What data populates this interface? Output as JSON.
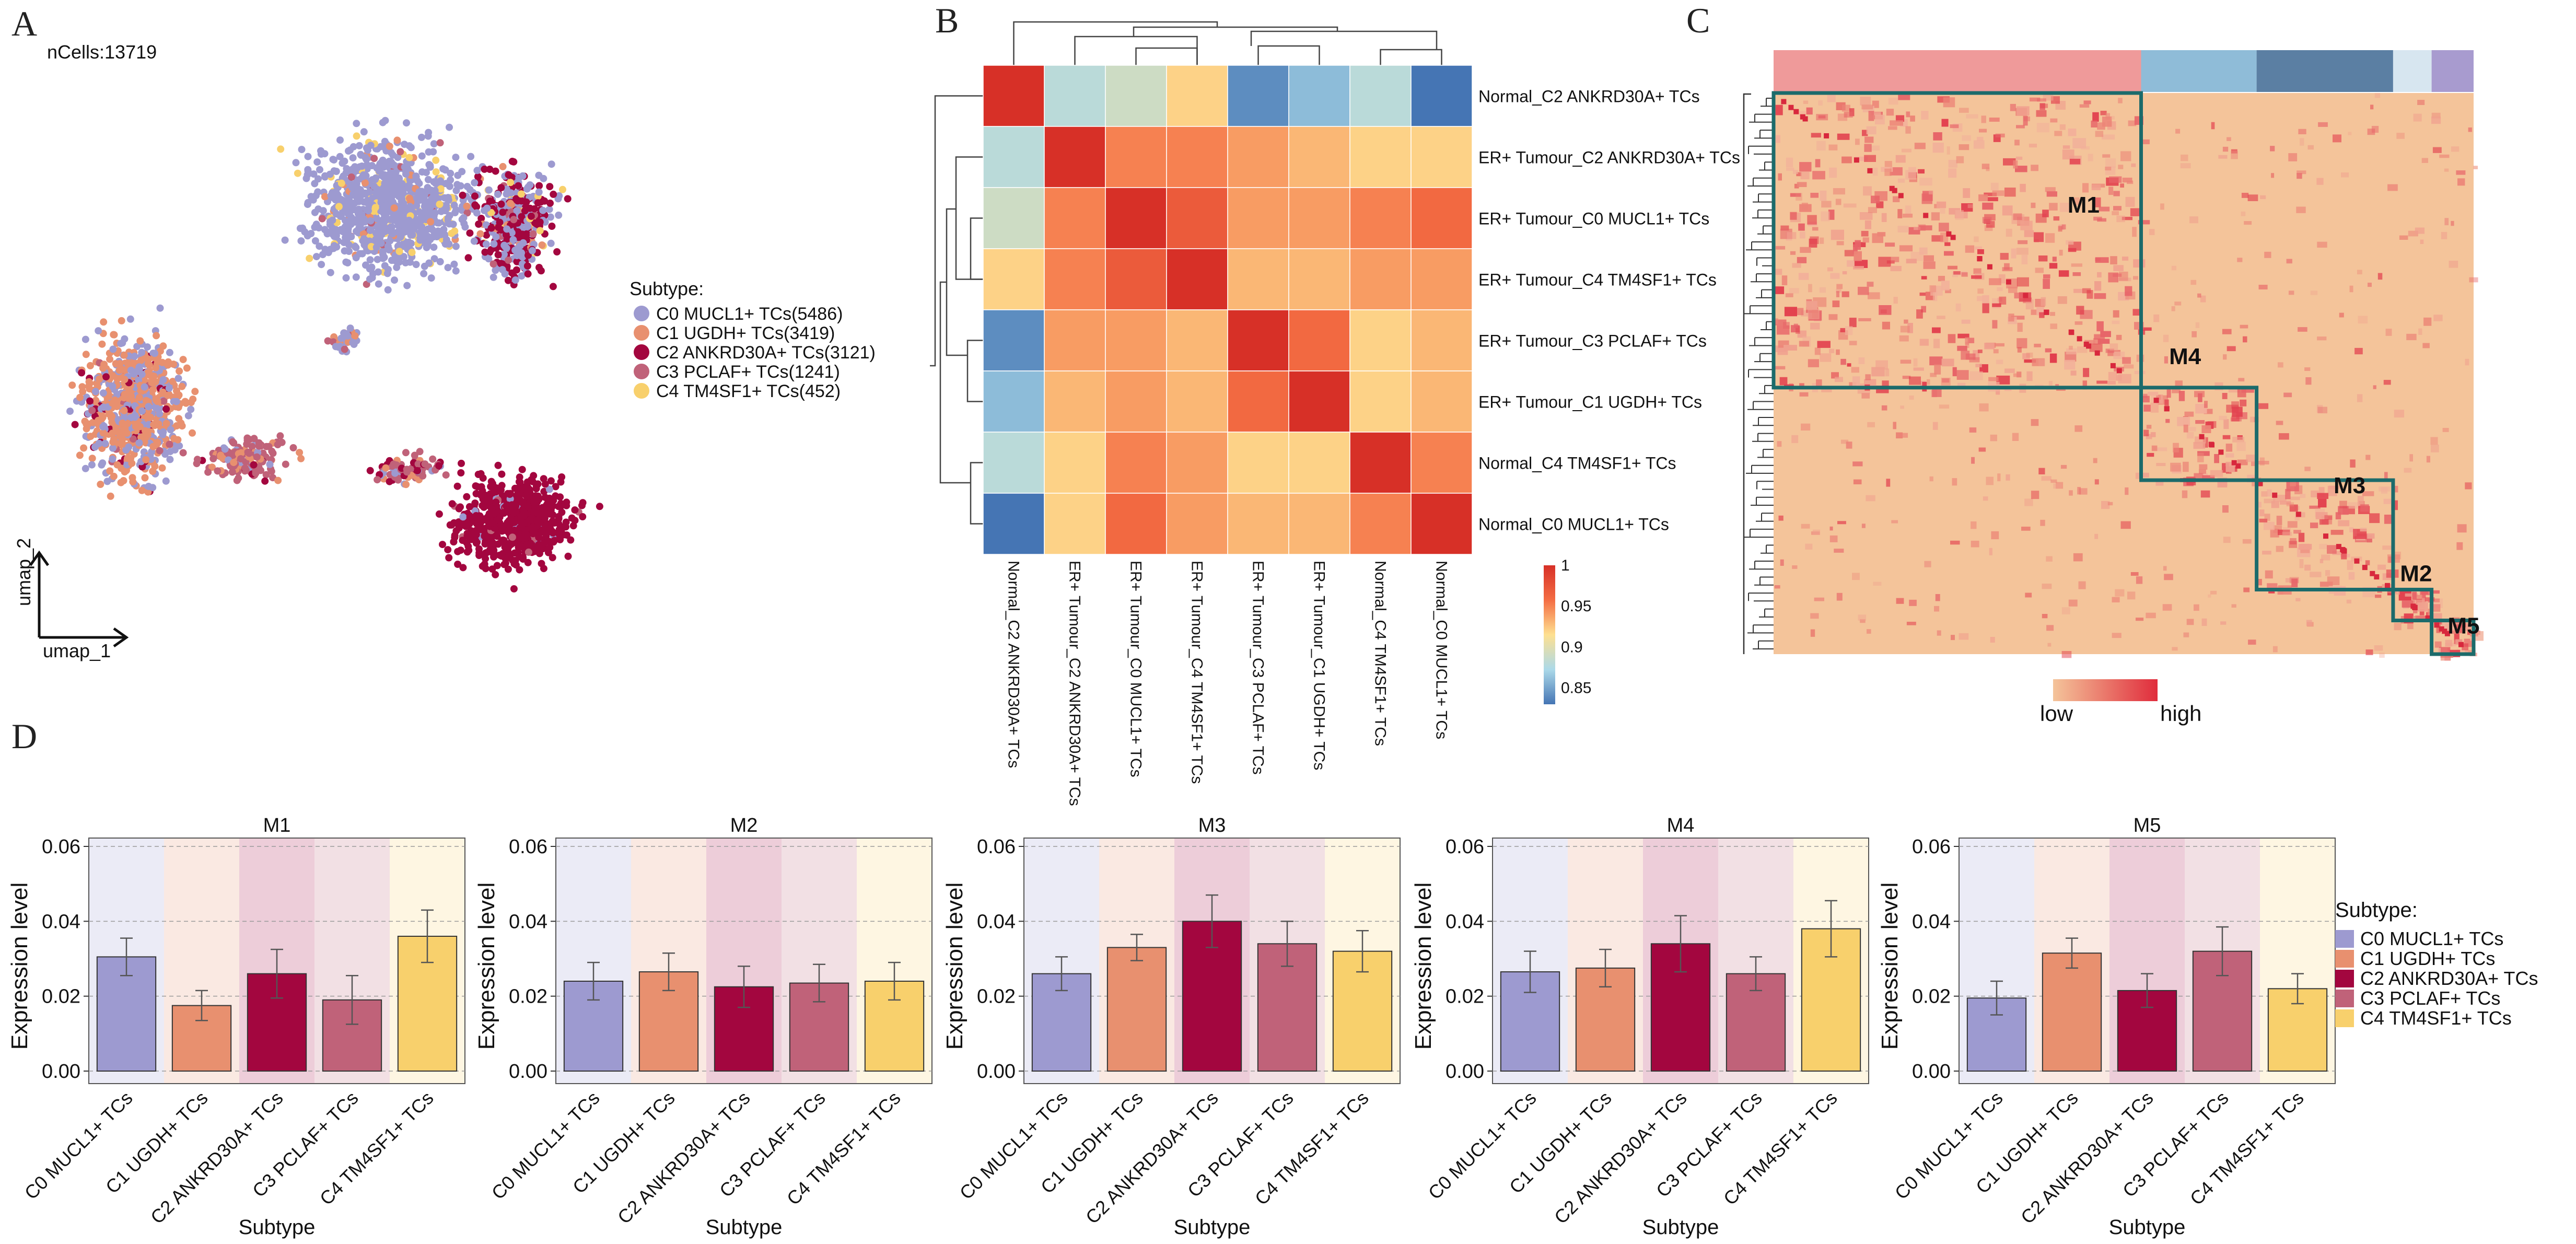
{
  "panel_labels": {
    "a": "A",
    "b": "B",
    "c": "C",
    "d": "D"
  },
  "chart_data": [
    {
      "id": "A",
      "type": "scatter",
      "title": "nCells:13719",
      "xlabel": "umap_1",
      "ylabel": "umap_2",
      "legend_title": "Subtype:",
      "legend": [
        {
          "label": "C0 MUCL1+ TCs(5486)",
          "color": "#9d9ad0",
          "count": 5486
        },
        {
          "label": "C1 UGDH+ TCs(3419)",
          "color": "#e8906f",
          "count": 3419
        },
        {
          "label": "C2 ANKRD30A+ TCs(3121)",
          "color": "#a3063f",
          "count": 3121
        },
        {
          "label": "C3 PCLAF+ TCs(1241)",
          "color": "#c06279",
          "count": 1241
        },
        {
          "label": "C4 TM4SF1+ TCs(452)",
          "color": "#f8d06c",
          "count": 452
        }
      ]
    },
    {
      "id": "B",
      "type": "heatmap",
      "rows": [
        "Normal_C2 ANKRD30A+ TCs",
        "ER+ Tumour_C2 ANKRD30A+ TCs",
        "ER+ Tumour_C0 MUCL1+ TCs",
        "ER+ Tumour_C4 TM4SF1+ TCs",
        "ER+ Tumour_C3 PCLAF+ TCs",
        "ER+ Tumour_C1 UGDH+ TCs",
        "Normal_C4 TM4SF1+ TCs",
        "Normal_C0 MUCL1+ TCs"
      ],
      "columns": [
        "Normal_C2 ANKRD30A+ TCs",
        "ER+ Tumour_C2 ANKRD30A+ TCs",
        "ER+ Tumour_C0 MUCL1+ TCs",
        "ER+ Tumour_C4 TM4SF1+ TCs",
        "ER+ Tumour_C3 PCLAF+ TCs",
        "ER+ Tumour_C1 UGDH+ TCs",
        "Normal_C4 TM4SF1+ TCs",
        "Normal_C0 MUCL1+ TCs"
      ],
      "values": [
        [
          1.0,
          0.88,
          0.89,
          0.92,
          0.84,
          0.86,
          0.88,
          0.83
        ],
        [
          0.88,
          1.0,
          0.95,
          0.95,
          0.94,
          0.93,
          0.92,
          0.92
        ],
        [
          0.89,
          0.95,
          1.0,
          0.97,
          0.94,
          0.94,
          0.95,
          0.96
        ],
        [
          0.92,
          0.95,
          0.97,
          1.0,
          0.93,
          0.93,
          0.94,
          0.94
        ],
        [
          0.84,
          0.94,
          0.94,
          0.93,
          1.0,
          0.96,
          0.92,
          0.93
        ],
        [
          0.86,
          0.93,
          0.94,
          0.93,
          0.96,
          1.0,
          0.92,
          0.93
        ],
        [
          0.88,
          0.92,
          0.95,
          0.94,
          0.92,
          0.92,
          1.0,
          0.95
        ],
        [
          0.83,
          0.92,
          0.96,
          0.94,
          0.93,
          0.93,
          0.95,
          1.0
        ]
      ],
      "colorbar": {
        "ticks": [
          "1",
          "0.95",
          "0.9",
          "0.85"
        ],
        "range": [
          0.83,
          1.0
        ]
      }
    },
    {
      "id": "C",
      "type": "heatmap",
      "modules": [
        "M1",
        "M4",
        "M3",
        "M2",
        "M5"
      ],
      "scale_labels": {
        "low": "low",
        "high": "high"
      },
      "top_bar_colors": [
        "#ef9a9a",
        "#8fbcd8",
        "#5b7fa3",
        "#d7e6f0",
        "#a89bcf"
      ]
    },
    {
      "id": "D",
      "type": "bar",
      "xlabel": "Subtype",
      "ylabel": "Expression level",
      "ylim": [
        0,
        0.06
      ],
      "yticks": [
        "0.00",
        "0.02",
        "0.04",
        "0.06"
      ],
      "categories": [
        "C0 MUCL1+ TCs",
        "C1 UGDH+ TCs",
        "C2 ANKRD30A+ TCs",
        "C3 PCLAF+ TCs",
        "C4 TM4SF1+ TCs"
      ],
      "colors": [
        "#9d9ad0",
        "#e8906f",
        "#a3063f",
        "#c06279",
        "#f8d06c"
      ],
      "legend_title": "Subtype:",
      "panels": [
        {
          "title": "M1",
          "values": [
            0.0305,
            0.0175,
            0.026,
            0.019,
            0.036
          ],
          "errors": [
            0.005,
            0.004,
            0.0065,
            0.0065,
            0.007
          ]
        },
        {
          "title": "M2",
          "values": [
            0.024,
            0.0265,
            0.0225,
            0.0235,
            0.024
          ],
          "errors": [
            0.005,
            0.005,
            0.0055,
            0.005,
            0.005
          ]
        },
        {
          "title": "M3",
          "values": [
            0.026,
            0.033,
            0.04,
            0.034,
            0.032
          ],
          "errors": [
            0.0045,
            0.0035,
            0.007,
            0.006,
            0.0055
          ]
        },
        {
          "title": "M4",
          "values": [
            0.0265,
            0.0275,
            0.034,
            0.026,
            0.038
          ],
          "errors": [
            0.0055,
            0.005,
            0.0075,
            0.0045,
            0.0075
          ]
        },
        {
          "title": "M5",
          "values": [
            0.0195,
            0.0315,
            0.0215,
            0.032,
            0.022
          ],
          "errors": [
            0.0045,
            0.004,
            0.0045,
            0.0065,
            0.004
          ]
        }
      ]
    }
  ]
}
